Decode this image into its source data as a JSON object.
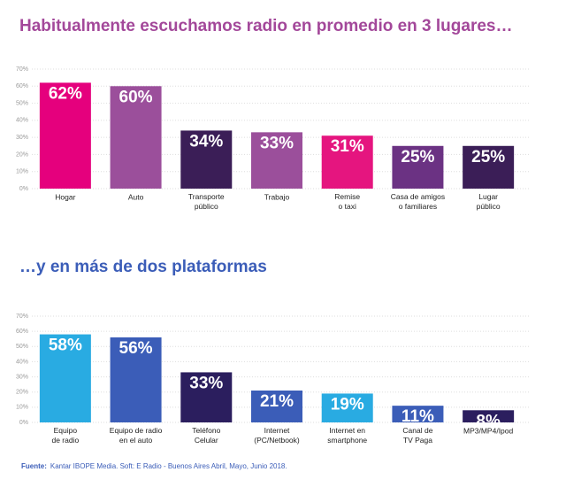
{
  "chart_data": [
    {
      "type": "bar",
      "title": "Habitualmente escuchamos radio en promedio en 3 lugares…",
      "categories": [
        "Hogar",
        "Auto",
        "Transporte público",
        "Trabajo",
        "Remise o taxi",
        "Casa de amigos o familiares",
        "Lugar público"
      ],
      "values": [
        62,
        60,
        34,
        33,
        31,
        25,
        25
      ],
      "value_labels": [
        "62%",
        "60%",
        "34%",
        "33%",
        "31%",
        "25%",
        "25%"
      ],
      "colors": [
        "#e5007d",
        "#9b4f9b",
        "#3b1e57",
        "#9b4f9b",
        "#e5157f",
        "#6b3283",
        "#3b1e57"
      ],
      "title_color": "#a3489a",
      "ylim": [
        0,
        70
      ],
      "yticks": [
        {
          "value": 0,
          "label": "0%"
        },
        {
          "value": 10,
          "label": "10%"
        },
        {
          "value": 20,
          "label": "20%"
        },
        {
          "value": 30,
          "label": "30%"
        },
        {
          "value": 40,
          "label": "40%"
        },
        {
          "value": 50,
          "label": "50%"
        },
        {
          "value": 60,
          "label": "60%"
        },
        {
          "value": 70,
          "label": "70%"
        }
      ],
      "grid": true
    },
    {
      "type": "bar",
      "title": "…y en más de dos plataformas",
      "categories": [
        "Equipo de radio",
        "Equipo de radio en el auto",
        "Teléfono Celular",
        "Internet (PC/Netbook)",
        "Internet en smartphone",
        "Canal de TV Paga",
        "MP3/MP4/Ipod"
      ],
      "values": [
        58,
        56,
        33,
        21,
        19,
        11,
        8
      ],
      "value_labels": [
        "58%",
        "56%",
        "33%",
        "21%",
        "19%",
        "11%",
        "8%"
      ],
      "colors": [
        "#29abe2",
        "#3b5db8",
        "#2b1e5e",
        "#3b5db8",
        "#29abe2",
        "#3b5db8",
        "#2b1e5e"
      ],
      "title_color": "#3b5db8",
      "ylim": [
        0,
        70
      ],
      "yticks": [
        {
          "value": 0,
          "label": "0%"
        },
        {
          "value": 10,
          "label": "10%"
        },
        {
          "value": 20,
          "label": "20%"
        },
        {
          "value": 30,
          "label": "30%"
        },
        {
          "value": 40,
          "label": "40%"
        },
        {
          "value": 50,
          "label": "50%"
        },
        {
          "value": 60,
          "label": "60%"
        },
        {
          "value": 70,
          "label": "70%"
        }
      ],
      "grid": true
    }
  ],
  "source": {
    "label": "Fuente:",
    "text": "Kantar IBOPE Media. Soft: E Radio  -  Buenos Aires Abril, Mayo, Junio 2018."
  }
}
